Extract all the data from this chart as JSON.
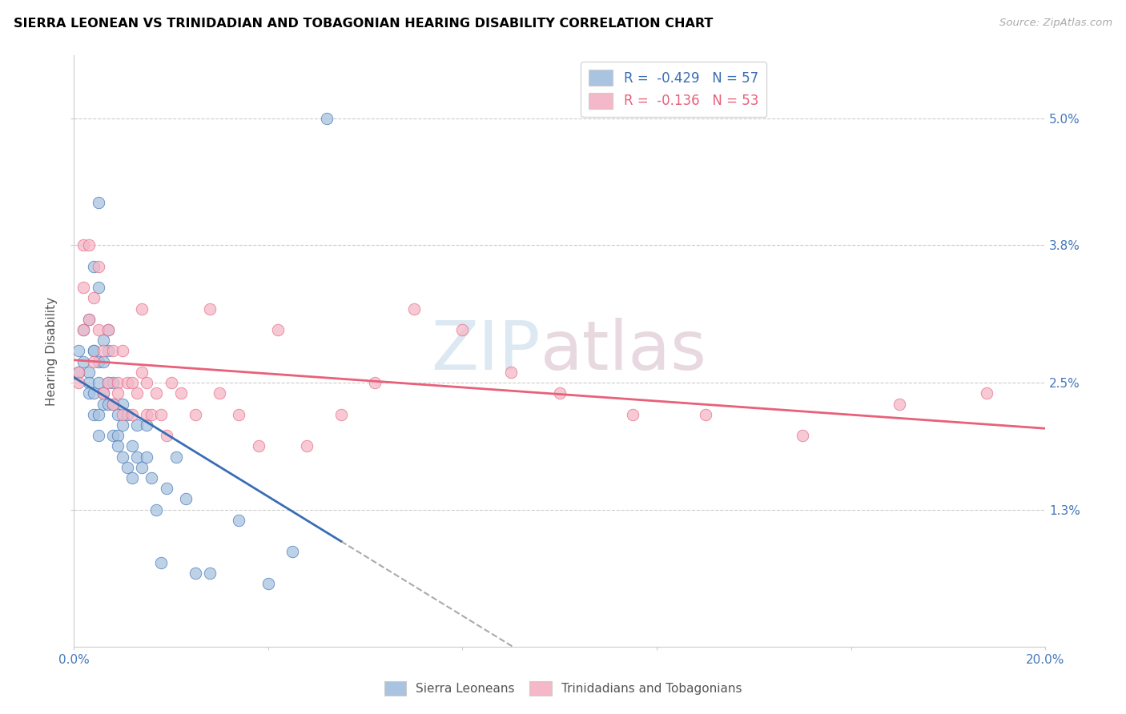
{
  "title": "SIERRA LEONEAN VS TRINIDADIAN AND TOBAGONIAN HEARING DISABILITY CORRELATION CHART",
  "source": "Source: ZipAtlas.com",
  "ylabel": "Hearing Disability",
  "yticks": [
    "5.0%",
    "3.8%",
    "2.5%",
    "1.3%"
  ],
  "ytick_vals": [
    0.05,
    0.038,
    0.025,
    0.013
  ],
  "xlim": [
    0.0,
    0.2
  ],
  "ylim": [
    0.0,
    0.056
  ],
  "legend_r1": "R =  -0.429",
  "legend_n1": "N = 57",
  "legend_r2": "R =  -0.136",
  "legend_n2": "N = 53",
  "color_blue": "#a8c4e0",
  "color_pink": "#f4b8c8",
  "color_blue_line": "#3a6db5",
  "color_pink_line": "#e8607a",
  "watermark_zip": "ZIP",
  "watermark_atlas": "atlas",
  "sl_points_x": [
    0.001,
    0.001,
    0.002,
    0.002,
    0.003,
    0.003,
    0.003,
    0.003,
    0.004,
    0.004,
    0.004,
    0.004,
    0.004,
    0.005,
    0.005,
    0.005,
    0.005,
    0.005,
    0.006,
    0.006,
    0.006,
    0.006,
    0.007,
    0.007,
    0.007,
    0.007,
    0.008,
    0.008,
    0.008,
    0.009,
    0.009,
    0.009,
    0.01,
    0.01,
    0.01,
    0.011,
    0.011,
    0.012,
    0.012,
    0.013,
    0.013,
    0.014,
    0.015,
    0.015,
    0.016,
    0.017,
    0.018,
    0.019,
    0.021,
    0.023,
    0.025,
    0.028,
    0.034,
    0.04,
    0.045,
    0.052,
    0.005
  ],
  "sl_points_y": [
    0.026,
    0.028,
    0.03,
    0.027,
    0.026,
    0.025,
    0.024,
    0.031,
    0.036,
    0.028,
    0.022,
    0.024,
    0.028,
    0.034,
    0.027,
    0.025,
    0.022,
    0.02,
    0.029,
    0.027,
    0.024,
    0.023,
    0.03,
    0.025,
    0.023,
    0.028,
    0.025,
    0.023,
    0.02,
    0.022,
    0.02,
    0.019,
    0.023,
    0.021,
    0.018,
    0.022,
    0.017,
    0.019,
    0.016,
    0.021,
    0.018,
    0.017,
    0.018,
    0.021,
    0.016,
    0.013,
    0.008,
    0.015,
    0.018,
    0.014,
    0.007,
    0.007,
    0.012,
    0.006,
    0.009,
    0.05,
    0.042
  ],
  "tt_points_x": [
    0.001,
    0.001,
    0.002,
    0.002,
    0.002,
    0.003,
    0.003,
    0.004,
    0.004,
    0.005,
    0.005,
    0.006,
    0.006,
    0.007,
    0.007,
    0.008,
    0.008,
    0.009,
    0.009,
    0.01,
    0.01,
    0.011,
    0.012,
    0.012,
    0.013,
    0.014,
    0.014,
    0.015,
    0.015,
    0.016,
    0.017,
    0.018,
    0.019,
    0.02,
    0.022,
    0.025,
    0.028,
    0.03,
    0.034,
    0.038,
    0.042,
    0.048,
    0.055,
    0.062,
    0.07,
    0.08,
    0.09,
    0.1,
    0.115,
    0.13,
    0.15,
    0.17,
    0.188
  ],
  "tt_points_y": [
    0.026,
    0.025,
    0.038,
    0.034,
    0.03,
    0.038,
    0.031,
    0.033,
    0.027,
    0.036,
    0.03,
    0.028,
    0.024,
    0.03,
    0.025,
    0.028,
    0.023,
    0.025,
    0.024,
    0.028,
    0.022,
    0.025,
    0.025,
    0.022,
    0.024,
    0.032,
    0.026,
    0.022,
    0.025,
    0.022,
    0.024,
    0.022,
    0.02,
    0.025,
    0.024,
    0.022,
    0.032,
    0.024,
    0.022,
    0.019,
    0.03,
    0.019,
    0.022,
    0.025,
    0.032,
    0.03,
    0.026,
    0.024,
    0.022,
    0.022,
    0.02,
    0.023,
    0.024
  ]
}
